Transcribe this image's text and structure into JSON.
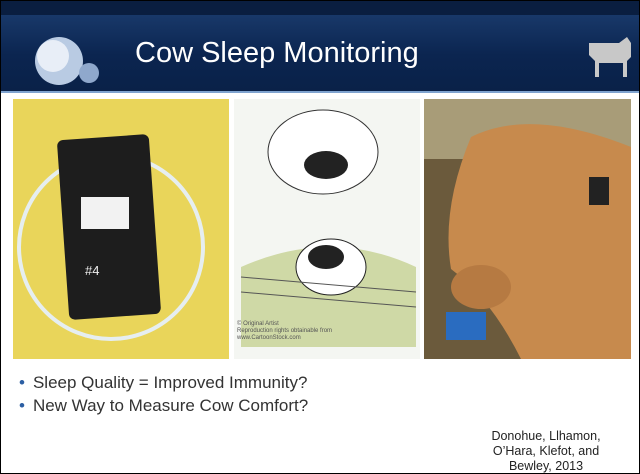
{
  "header": {
    "title": "Cow Sleep Monitoring"
  },
  "images": [
    {
      "label": "#4"
    },
    {
      "credit": [
        "© Original Artist",
        "Reproduction rights obtainable from",
        "www.CartoonStock.com"
      ]
    }
  ],
  "bullets": [
    "Sleep Quality = Improved Immunity?",
    "New Way to Measure Cow Comfort?"
  ],
  "citation": [
    "Donohue, Llhamon,",
    "O’Hara, Klefot, and",
    "Bewley, 2013"
  ]
}
